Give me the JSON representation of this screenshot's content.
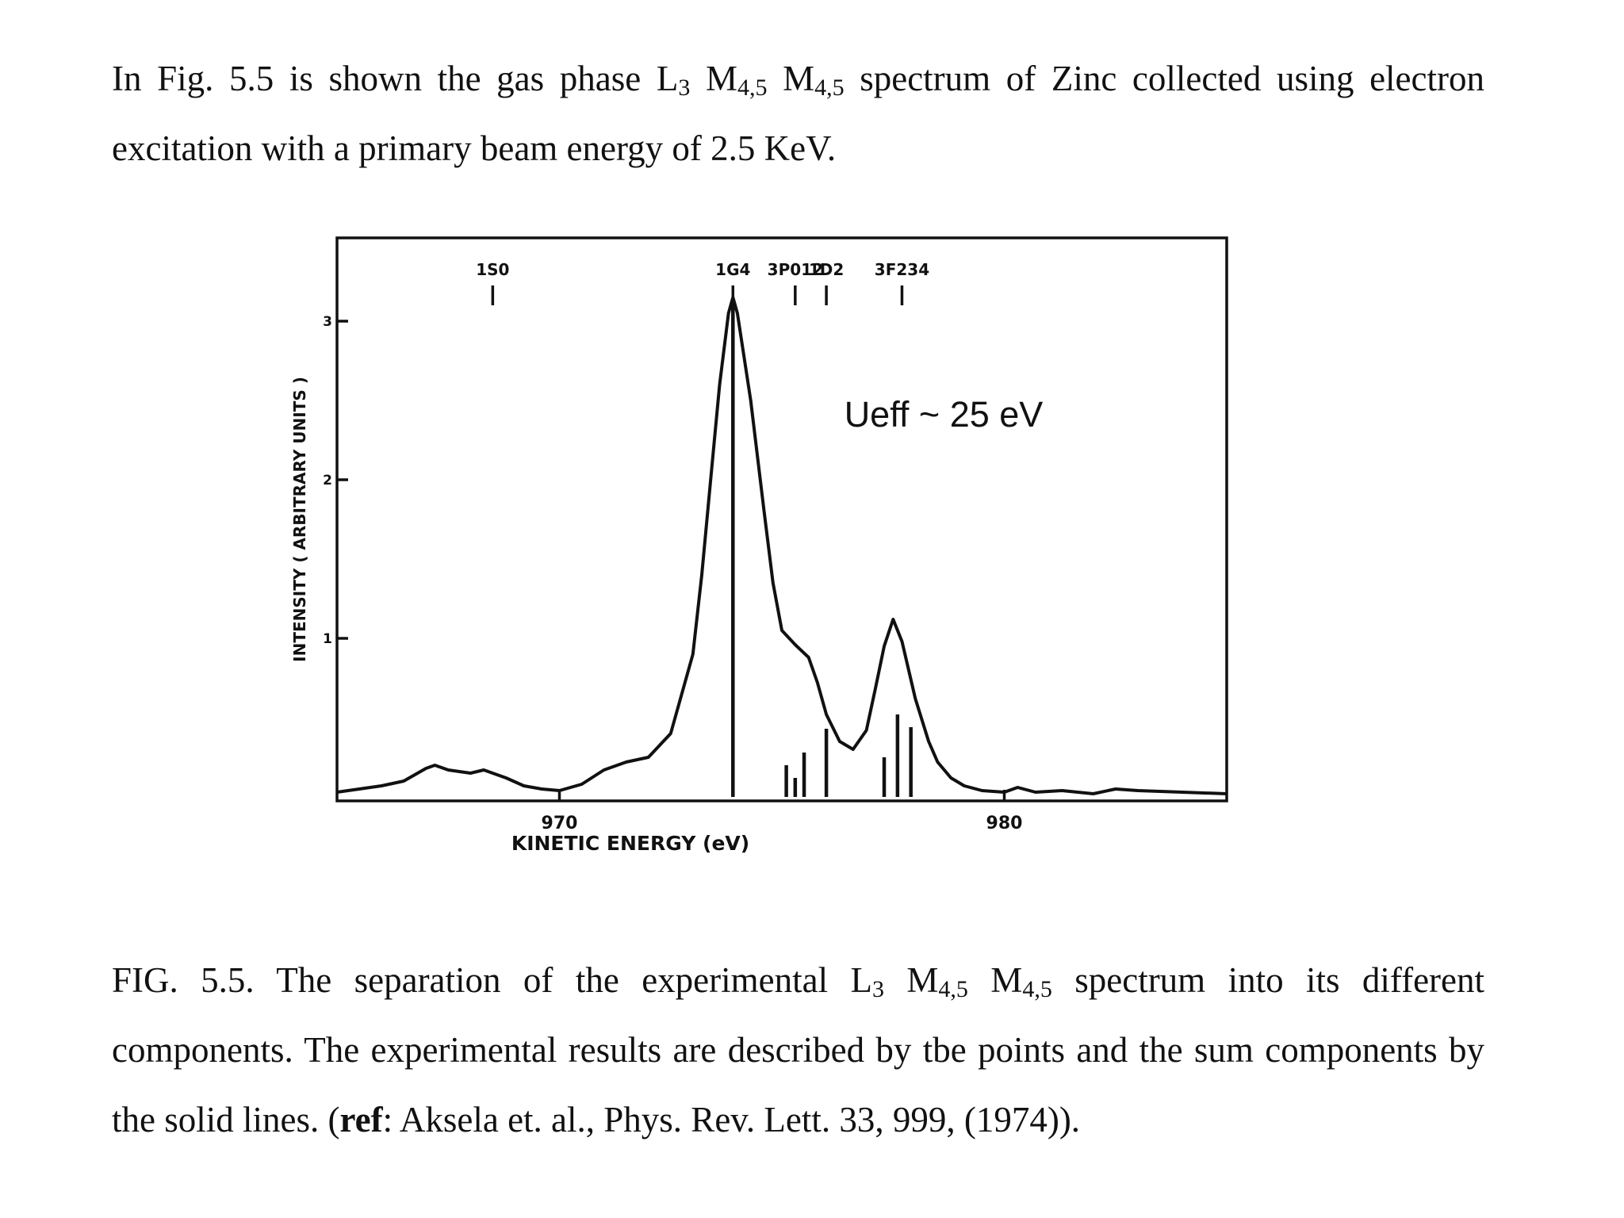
{
  "intro": {
    "p1": "In Fig. 5.5 is shown the gas phase L",
    "s1": "3",
    "p2": " M",
    "s2": "4,5",
    "p3": " M",
    "s3": "4,5",
    "p4": " spectrum of Zinc collected using electron excitation with a primary beam energy of 2.5 KeV."
  },
  "caption": {
    "p1": "FIG. 5.5. The separation of the experimental L",
    "s1": "3",
    "p2": " M",
    "s2": "4,5",
    "p3": " M",
    "s3": "4,5",
    "p4": " spectrum into its different components. The experimental results are described by tbe points and the sum components by the solid lines. (",
    "ref_label": "ref",
    "p5": ": Aksela et. al., Phys. Rev. Lett. 33, 999, (1974))."
  },
  "annotation": "Ueff ~ 25 eV",
  "chart_data": {
    "type": "line",
    "title": "",
    "xlabel": "KINETIC ENERGY (eV)",
    "ylabel": "INTENSITY ( ARBITRARY UNITS )",
    "xlim": [
      965,
      985
    ],
    "ylim": [
      0,
      3.5
    ],
    "x_ticks": [
      {
        "value": 970,
        "label": "970"
      },
      {
        "value": 980,
        "label": "980"
      }
    ],
    "y_ticks": [
      {
        "value": 1,
        "label": "1"
      },
      {
        "value": 2,
        "label": "2"
      },
      {
        "value": 3,
        "label": "3"
      }
    ],
    "curve": {
      "x": [
        965.0,
        965.5,
        966.0,
        966.5,
        967.0,
        967.2,
        967.5,
        968.0,
        968.3,
        968.8,
        969.2,
        969.6,
        970.0,
        970.5,
        971.0,
        971.5,
        972.0,
        972.5,
        973.0,
        973.2,
        973.4,
        973.6,
        973.8,
        973.9,
        974.0,
        974.3,
        974.6,
        974.8,
        975.0,
        975.3,
        975.6,
        975.8,
        976.0,
        976.3,
        976.6,
        976.9,
        977.1,
        977.3,
        977.5,
        977.7,
        978.0,
        978.3,
        978.5,
        978.8,
        979.1,
        979.5,
        980.0,
        980.3,
        980.7,
        981.3,
        982.0,
        982.5,
        983.0,
        984.0,
        985.0
      ],
      "y": [
        0.03,
        0.05,
        0.07,
        0.1,
        0.18,
        0.2,
        0.17,
        0.15,
        0.17,
        0.12,
        0.07,
        0.05,
        0.04,
        0.08,
        0.17,
        0.22,
        0.25,
        0.4,
        0.9,
        1.4,
        2.0,
        2.6,
        3.05,
        3.15,
        3.05,
        2.5,
        1.8,
        1.35,
        1.05,
        0.96,
        0.88,
        0.72,
        0.52,
        0.35,
        0.3,
        0.42,
        0.68,
        0.95,
        1.12,
        0.98,
        0.62,
        0.35,
        0.22,
        0.12,
        0.07,
        0.04,
        0.03,
        0.06,
        0.03,
        0.04,
        0.02,
        0.05,
        0.04,
        0.03,
        0.02
      ]
    },
    "components": [
      {
        "term": "1G4",
        "x": 973.9,
        "height": 3.1
      },
      {
        "term": "3P0",
        "x": 975.1,
        "height": 0.2
      },
      {
        "term": "3P1",
        "x": 975.3,
        "height": 0.12
      },
      {
        "term": "3P2",
        "x": 975.5,
        "height": 0.28
      },
      {
        "term": "1D2",
        "x": 976.0,
        "height": 0.43
      },
      {
        "term": "3F2",
        "x": 977.3,
        "height": 0.25
      },
      {
        "term": "3F3",
        "x": 977.6,
        "height": 0.52
      },
      {
        "term": "3F4",
        "x": 977.9,
        "height": 0.44
      }
    ],
    "top_markers": [
      {
        "label": "1S0",
        "x": 968.5
      },
      {
        "label": "1G4",
        "x": 973.9
      },
      {
        "label": "3P012",
        "x": 975.3
      },
      {
        "label": "1D2",
        "x": 976.0
      },
      {
        "label": "3F234",
        "x": 977.7
      }
    ],
    "annotations": [
      "Ueff ~ 25 eV"
    ]
  }
}
